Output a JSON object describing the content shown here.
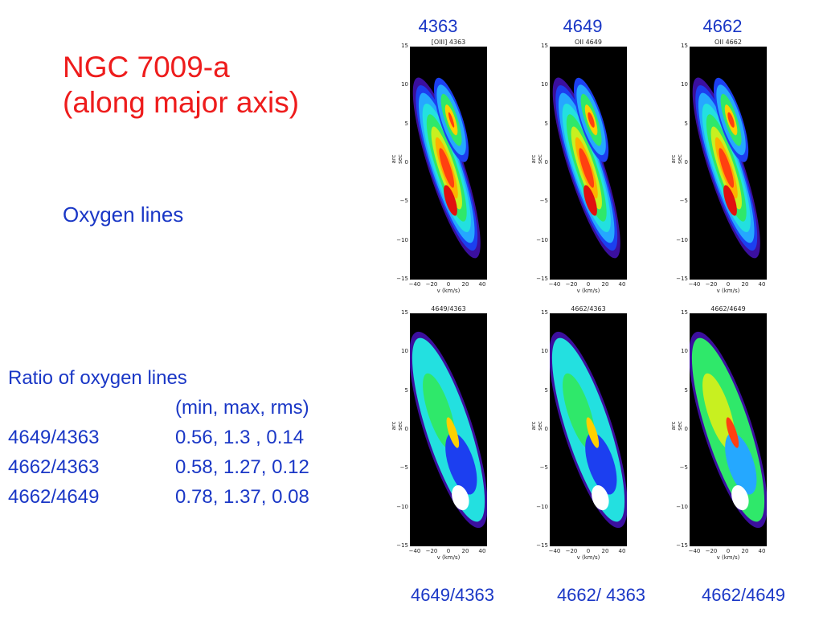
{
  "slide": {
    "title_line1": "NGC 7009-a",
    "title_line2": "(along major axis)",
    "subtitle": "Oxygen lines",
    "colors": {
      "title": "#ee1c1c",
      "text": "#1a37c6",
      "plot_bg": "#000000"
    }
  },
  "ratio_table": {
    "heading": "Ratio of oxygen lines",
    "columns_header": "(min,  max, rms)",
    "rows": [
      {
        "name": "4649/4363",
        "values": "0.56, 1.3 ,   0.14"
      },
      {
        "name": "4662/4363",
        "values": "0.58, 1.27,  0.12"
      },
      {
        "name": "4662/4649",
        "values": "0.78, 1.37,  0.08"
      }
    ]
  },
  "top_captions": [
    "4363",
    "4649",
    "4662"
  ],
  "bottom_captions": [
    "4649/4363",
    "4662/ 4363",
    "4662/4649"
  ],
  "panels": [
    {
      "title": "[OIII] 4363",
      "ylabel": "arc sec",
      "xlabel": "v (km/s)",
      "colormap": "intensity"
    },
    {
      "title": "OII 4649",
      "ylabel": "arc sec",
      "xlabel": "v (km/s)",
      "colormap": "intensity"
    },
    {
      "title": "OII 4662",
      "ylabel": "arc sec",
      "xlabel": "v (km/s)",
      "colormap": "intensity"
    },
    {
      "title": "4649/4363",
      "ylabel": "arc sec",
      "xlabel": "v (km/s)",
      "colormap": "ratio"
    },
    {
      "title": "4662/4363",
      "ylabel": "arc sec",
      "xlabel": "v (km/s)",
      "colormap": "ratio"
    },
    {
      "title": "4662/4649",
      "ylabel": "arc sec",
      "xlabel": "v (km/s)",
      "colormap": "ratio"
    }
  ],
  "axes": {
    "y_ticks": [
      "15",
      "10",
      "5",
      "0",
      "−5",
      "−10",
      "−15"
    ],
    "x_ticks": [
      "−40",
      "−20",
      "0",
      "20",
      "40"
    ],
    "xlim": [
      -45,
      45
    ],
    "ylim": [
      -15,
      15
    ]
  }
}
